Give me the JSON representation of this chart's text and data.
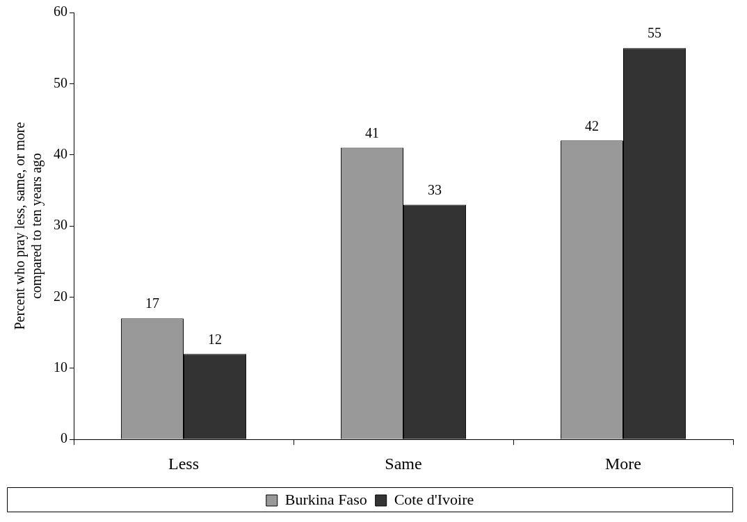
{
  "chart_data": {
    "type": "bar",
    "ylabel": "Percent who pray less, same, or more\ncompared to ten years ago",
    "categories": [
      "Less",
      "Same",
      "More"
    ],
    "series": [
      {
        "name": "Burkina Faso",
        "color": "#999999",
        "values": [
          17,
          41,
          42
        ]
      },
      {
        "name": "Cote d'Ivoire",
        "color": "#333333",
        "values": [
          12,
          33,
          55
        ]
      }
    ],
    "ylim": [
      0,
      60
    ],
    "yticks": [
      0,
      10,
      20,
      30,
      40,
      50,
      60
    ],
    "grid": false,
    "legend": "bottom",
    "data_labels": true
  }
}
